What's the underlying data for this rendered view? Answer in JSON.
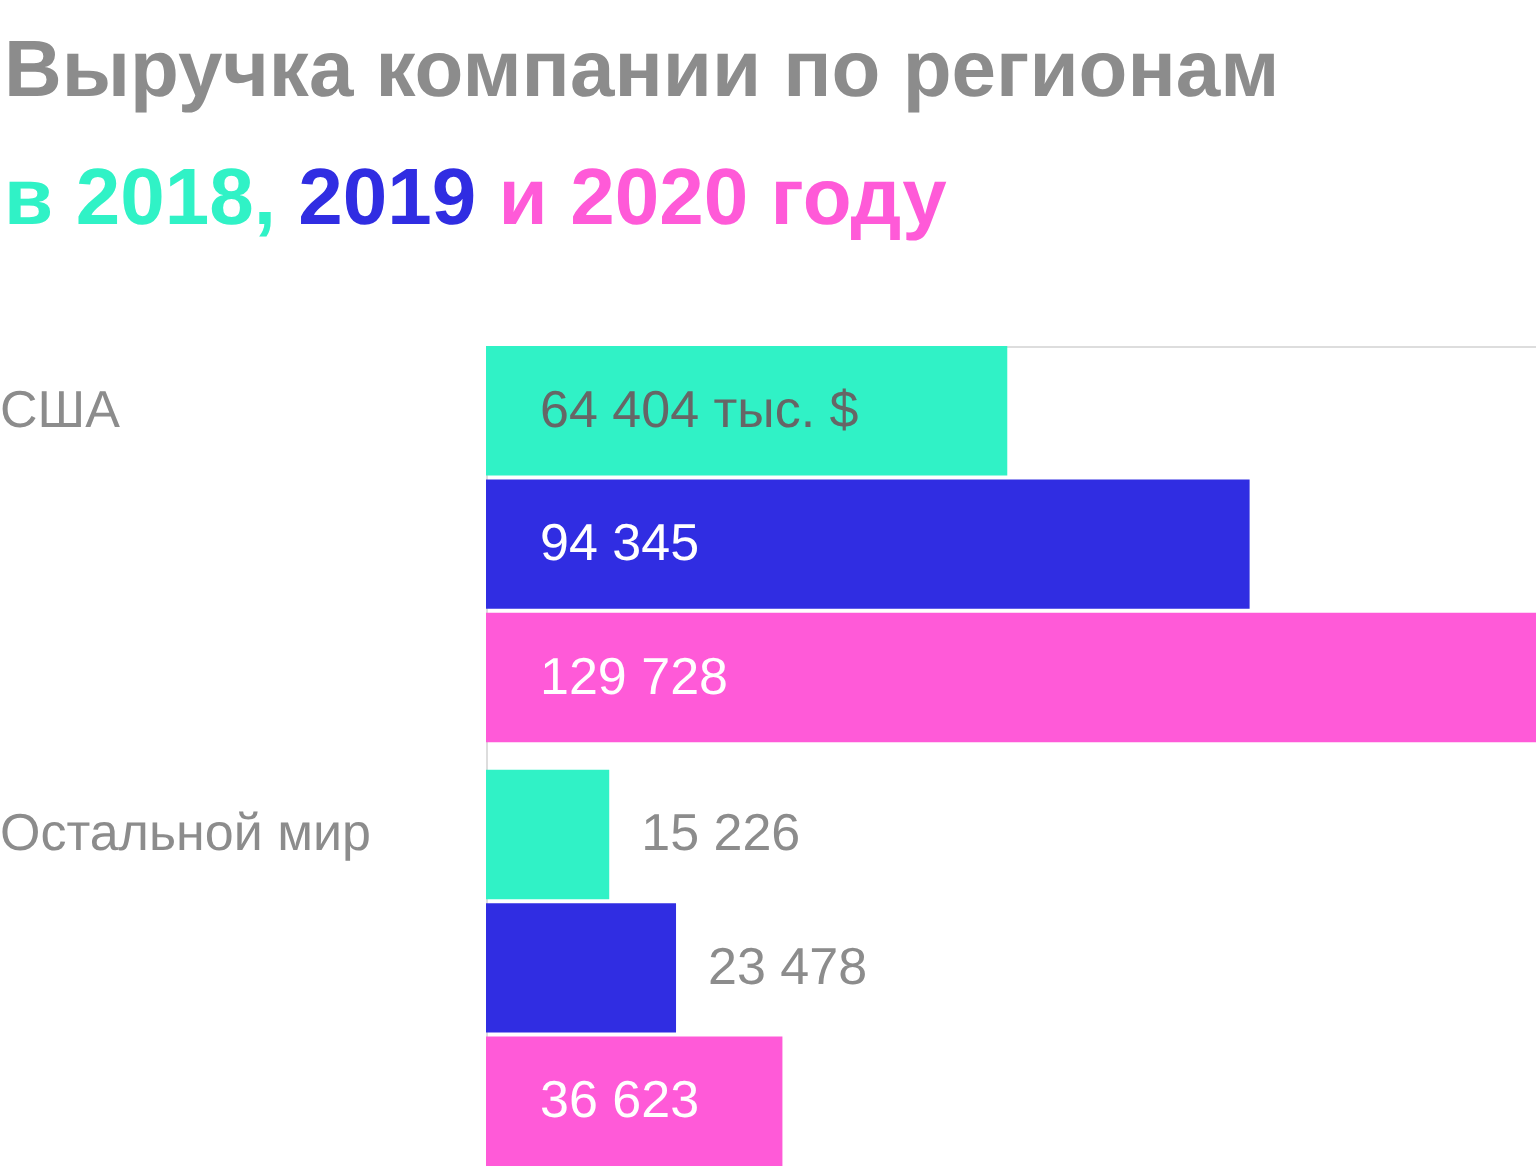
{
  "chart_data": {
    "type": "bar",
    "orientation": "horizontal",
    "title": "Выручка компании по регионам",
    "subtitle": "в 2018, 2019 и 2020 году",
    "categories": [
      "США",
      "Остальной мир"
    ],
    "series": [
      {
        "color": "#30f2c6",
        "values": [
          64404,
          15226
        ],
        "value_labels": [
          "64 404 тыс. $",
          "15 226"
        ]
      },
      {
        "color": "#302de2",
        "values": [
          94345,
          23478
        ],
        "value_labels": [
          "94 345",
          "23 478"
        ]
      },
      {
        "color": "#ff5ad8",
        "values": [
          129728,
          36623
        ],
        "value_labels": [
          "129 728",
          "36 623"
        ]
      }
    ]
  }
}
